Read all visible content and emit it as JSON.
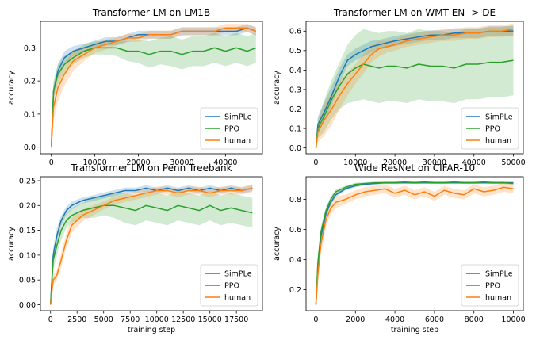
{
  "colors": {
    "SimPLe": "#1f77b4",
    "PPO": "#2ca02c",
    "human": "#ff7f0e"
  },
  "chart_data": [
    {
      "type": "line",
      "title": "Transformer LM on LM1B",
      "xlabel": "",
      "ylabel": "accuracy",
      "xlim": [
        -2500,
        48500
      ],
      "ylim": [
        -0.02,
        0.38
      ],
      "xticks": [
        0,
        10000,
        20000,
        30000,
        40000
      ],
      "yticks": [
        0.0,
        0.1,
        0.2,
        0.3
      ],
      "ytick_labels": [
        "0.0",
        "0.1",
        "0.2",
        "0.3"
      ],
      "legend": "bottom-right",
      "x": [
        0,
        500,
        1500,
        3000,
        5000,
        7500,
        10000,
        12500,
        15000,
        17500,
        20000,
        22500,
        25000,
        27500,
        30000,
        32500,
        35000,
        37500,
        40000,
        42500,
        45000,
        47000
      ],
      "series": [
        {
          "name": "SimPLe",
          "values": [
            0.0,
            0.17,
            0.23,
            0.27,
            0.29,
            0.3,
            0.31,
            0.32,
            0.32,
            0.33,
            0.34,
            0.34,
            0.34,
            0.34,
            0.35,
            0.35,
            0.35,
            0.35,
            0.35,
            0.35,
            0.36,
            0.35
          ],
          "band": [
            0.012,
            0.02,
            0.02,
            0.02,
            0.015,
            0.012,
            0.012,
            0.012,
            0.012,
            0.012,
            0.012,
            0.012,
            0.012,
            0.012,
            0.012,
            0.012,
            0.012,
            0.012,
            0.012,
            0.012,
            0.012,
            0.012
          ]
        },
        {
          "name": "PPO",
          "values": [
            0.0,
            0.17,
            0.22,
            0.25,
            0.27,
            0.29,
            0.3,
            0.3,
            0.3,
            0.29,
            0.29,
            0.28,
            0.29,
            0.29,
            0.28,
            0.29,
            0.29,
            0.3,
            0.29,
            0.3,
            0.29,
            0.3
          ],
          "band": [
            0.012,
            0.03,
            0.03,
            0.025,
            0.02,
            0.02,
            0.02,
            0.02,
            0.025,
            0.03,
            0.035,
            0.04,
            0.04,
            0.045,
            0.045,
            0.045,
            0.045,
            0.045,
            0.045,
            0.045,
            0.045,
            0.045
          ]
        },
        {
          "name": "human",
          "values": [
            0.0,
            0.12,
            0.18,
            0.22,
            0.26,
            0.28,
            0.3,
            0.31,
            0.32,
            0.33,
            0.33,
            0.34,
            0.34,
            0.34,
            0.35,
            0.35,
            0.35,
            0.35,
            0.36,
            0.36,
            0.36,
            0.35
          ],
          "band": [
            0.012,
            0.04,
            0.04,
            0.035,
            0.03,
            0.02,
            0.015,
            0.015,
            0.012,
            0.012,
            0.012,
            0.012,
            0.012,
            0.012,
            0.012,
            0.012,
            0.012,
            0.012,
            0.012,
            0.012,
            0.012,
            0.012
          ]
        }
      ]
    },
    {
      "type": "line",
      "title": "Transformer LM on WMT EN -> DE",
      "xlabel": "",
      "ylabel": "accuracy",
      "xlim": [
        -2500,
        52500
      ],
      "ylim": [
        -0.03,
        0.65
      ],
      "xticks": [
        0,
        10000,
        20000,
        30000,
        40000,
        50000
      ],
      "yticks": [
        0.0,
        0.1,
        0.2,
        0.3,
        0.4,
        0.5,
        0.6
      ],
      "ytick_labels": [
        "0.0",
        "0.1",
        "0.2",
        "0.3",
        "0.4",
        "0.5",
        "0.6"
      ],
      "legend": "bottom-right",
      "x": [
        0,
        500,
        2000,
        4000,
        6000,
        8000,
        10000,
        12000,
        14000,
        16000,
        18000,
        20000,
        23000,
        26000,
        29000,
        32000,
        35000,
        38000,
        41000,
        44000,
        47000,
        50000
      ],
      "series": [
        {
          "name": "SimPLe",
          "values": [
            0.0,
            0.12,
            0.18,
            0.27,
            0.37,
            0.45,
            0.48,
            0.5,
            0.52,
            0.53,
            0.54,
            0.55,
            0.56,
            0.57,
            0.58,
            0.58,
            0.59,
            0.59,
            0.59,
            0.6,
            0.6,
            0.6
          ],
          "band": [
            0.02,
            0.04,
            0.05,
            0.05,
            0.04,
            0.03,
            0.03,
            0.03,
            0.03,
            0.025,
            0.025,
            0.025,
            0.025,
            0.025,
            0.025,
            0.025,
            0.025,
            0.025,
            0.025,
            0.025,
            0.025,
            0.025
          ]
        },
        {
          "name": "PPO",
          "values": [
            0.0,
            0.1,
            0.16,
            0.25,
            0.32,
            0.38,
            0.41,
            0.43,
            0.42,
            0.41,
            0.42,
            0.42,
            0.41,
            0.43,
            0.42,
            0.42,
            0.41,
            0.43,
            0.43,
            0.44,
            0.44,
            0.45
          ],
          "band": [
            0.02,
            0.05,
            0.08,
            0.1,
            0.12,
            0.15,
            0.17,
            0.18,
            0.18,
            0.18,
            0.18,
            0.18,
            0.18,
            0.18,
            0.18,
            0.18,
            0.18,
            0.18,
            0.18,
            0.18,
            0.18,
            0.18
          ]
        },
        {
          "name": "human",
          "values": [
            0.0,
            0.08,
            0.14,
            0.2,
            0.27,
            0.33,
            0.38,
            0.43,
            0.48,
            0.51,
            0.52,
            0.53,
            0.55,
            0.56,
            0.57,
            0.58,
            0.58,
            0.59,
            0.59,
            0.6,
            0.6,
            0.61
          ],
          "band": [
            0.02,
            0.05,
            0.08,
            0.08,
            0.07,
            0.06,
            0.05,
            0.05,
            0.04,
            0.04,
            0.03,
            0.03,
            0.03,
            0.03,
            0.03,
            0.03,
            0.03,
            0.03,
            0.03,
            0.03,
            0.03,
            0.03
          ]
        }
      ]
    },
    {
      "type": "line",
      "title": "Transformer LM on Penn Treebank",
      "xlabel": "training step",
      "ylabel": "accuracy",
      "xlim": [
        -950,
        19950
      ],
      "ylim": [
        -0.012,
        0.258
      ],
      "xticks": [
        0,
        2500,
        5000,
        7500,
        10000,
        12500,
        15000,
        17500
      ],
      "yticks": [
        0.0,
        0.05,
        0.1,
        0.15,
        0.2,
        0.25
      ],
      "ytick_labels": [
        "0.00",
        "0.05",
        "0.10",
        "0.15",
        "0.20",
        "0.25"
      ],
      "legend": "bottom-right",
      "x": [
        0,
        250,
        600,
        1000,
        1500,
        2000,
        3000,
        4000,
        5000,
        6000,
        7000,
        8000,
        9000,
        10000,
        11000,
        12000,
        13000,
        14000,
        15000,
        16000,
        17000,
        18000,
        19000
      ],
      "series": [
        {
          "name": "SimPLe",
          "values": [
            0.0,
            0.1,
            0.14,
            0.17,
            0.19,
            0.2,
            0.21,
            0.215,
            0.22,
            0.225,
            0.23,
            0.23,
            0.235,
            0.23,
            0.235,
            0.23,
            0.235,
            0.23,
            0.235,
            0.23,
            0.235,
            0.23,
            0.235
          ],
          "band": [
            0.005,
            0.015,
            0.015,
            0.01,
            0.008,
            0.008,
            0.006,
            0.006,
            0.006,
            0.006,
            0.006,
            0.006,
            0.006,
            0.006,
            0.006,
            0.006,
            0.006,
            0.006,
            0.006,
            0.006,
            0.006,
            0.006,
            0.006
          ]
        },
        {
          "name": "PPO",
          "values": [
            0.0,
            0.09,
            0.12,
            0.15,
            0.17,
            0.18,
            0.19,
            0.195,
            0.2,
            0.2,
            0.195,
            0.19,
            0.2,
            0.195,
            0.19,
            0.2,
            0.195,
            0.19,
            0.2,
            0.19,
            0.195,
            0.19,
            0.185
          ],
          "band": [
            0.005,
            0.02,
            0.02,
            0.02,
            0.015,
            0.015,
            0.015,
            0.02,
            0.02,
            0.025,
            0.03,
            0.03,
            0.03,
            0.03,
            0.03,
            0.03,
            0.03,
            0.03,
            0.03,
            0.03,
            0.03,
            0.03,
            0.03
          ]
        },
        {
          "name": "human",
          "values": [
            0.0,
            0.05,
            0.06,
            0.09,
            0.13,
            0.16,
            0.18,
            0.19,
            0.2,
            0.21,
            0.215,
            0.22,
            0.225,
            0.23,
            0.23,
            0.225,
            0.23,
            0.23,
            0.225,
            0.23,
            0.23,
            0.23,
            0.235
          ],
          "band": [
            0.005,
            0.01,
            0.01,
            0.015,
            0.015,
            0.015,
            0.012,
            0.01,
            0.008,
            0.008,
            0.008,
            0.008,
            0.008,
            0.008,
            0.008,
            0.008,
            0.008,
            0.008,
            0.008,
            0.008,
            0.008,
            0.008,
            0.008
          ]
        }
      ]
    },
    {
      "type": "line",
      "title": "Wide ResNet on CIFAR-10",
      "xlabel": "training step",
      "ylabel": "accuracy",
      "xlim": [
        -500,
        10500
      ],
      "ylim": [
        0.06,
        0.95
      ],
      "xticks": [
        0,
        2000,
        4000,
        6000,
        8000,
        10000
      ],
      "yticks": [
        0.2,
        0.4,
        0.6,
        0.8
      ],
      "ytick_labels": [
        "0.2",
        "0.4",
        "0.6",
        "0.8"
      ],
      "legend": "bottom-right",
      "x": [
        0,
        100,
        250,
        500,
        750,
        1000,
        1500,
        2000,
        2500,
        3000,
        3500,
        4000,
        4500,
        5000,
        5500,
        6000,
        6500,
        7000,
        7500,
        8000,
        8500,
        9000,
        9500,
        10000
      ],
      "series": [
        {
          "name": "SimPLe",
          "values": [
            0.1,
            0.35,
            0.55,
            0.7,
            0.78,
            0.83,
            0.87,
            0.89,
            0.9,
            0.905,
            0.91,
            0.91,
            0.91,
            0.91,
            0.91,
            0.91,
            0.91,
            0.91,
            0.91,
            0.91,
            0.91,
            0.91,
            0.91,
            0.91
          ],
          "band": [
            0.01,
            0.04,
            0.04,
            0.03,
            0.02,
            0.015,
            0.01,
            0.01,
            0.008,
            0.008,
            0.008,
            0.008,
            0.008,
            0.008,
            0.008,
            0.008,
            0.008,
            0.008,
            0.008,
            0.008,
            0.008,
            0.008,
            0.008,
            0.008
          ]
        },
        {
          "name": "PPO",
          "values": [
            0.1,
            0.38,
            0.58,
            0.72,
            0.8,
            0.85,
            0.88,
            0.9,
            0.905,
            0.91,
            0.91,
            0.91,
            0.915,
            0.91,
            0.915,
            0.91,
            0.91,
            0.915,
            0.91,
            0.91,
            0.915,
            0.91,
            0.91,
            0.905
          ],
          "band": [
            0.01,
            0.04,
            0.04,
            0.03,
            0.02,
            0.015,
            0.01,
            0.01,
            0.008,
            0.008,
            0.008,
            0.008,
            0.008,
            0.008,
            0.008,
            0.008,
            0.008,
            0.008,
            0.008,
            0.008,
            0.008,
            0.008,
            0.008,
            0.008
          ]
        },
        {
          "name": "human",
          "values": [
            0.1,
            0.3,
            0.5,
            0.66,
            0.74,
            0.78,
            0.8,
            0.83,
            0.85,
            0.86,
            0.87,
            0.84,
            0.86,
            0.83,
            0.85,
            0.82,
            0.86,
            0.84,
            0.83,
            0.87,
            0.85,
            0.86,
            0.88,
            0.87
          ],
          "band": [
            0.01,
            0.06,
            0.06,
            0.05,
            0.04,
            0.04,
            0.03,
            0.03,
            0.03,
            0.03,
            0.03,
            0.03,
            0.03,
            0.03,
            0.03,
            0.03,
            0.03,
            0.03,
            0.03,
            0.03,
            0.03,
            0.03,
            0.03,
            0.03
          ]
        }
      ]
    }
  ]
}
